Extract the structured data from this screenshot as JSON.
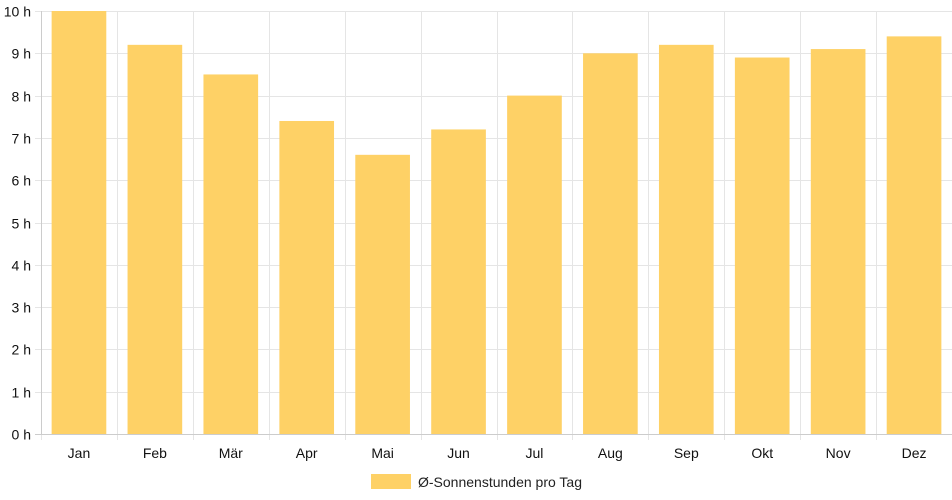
{
  "chart_data": {
    "type": "bar",
    "categories": [
      "Jan",
      "Feb",
      "Mär",
      "Apr",
      "Mai",
      "Jun",
      "Jul",
      "Aug",
      "Sep",
      "Okt",
      "Nov",
      "Dez"
    ],
    "series": [
      {
        "name": "Ø-Sonnenstunden pro Tag",
        "values": [
          10.0,
          9.2,
          8.5,
          7.4,
          6.6,
          7.2,
          8.0,
          9.0,
          9.2,
          8.9,
          9.1,
          9.4
        ]
      }
    ],
    "y_ticks": [
      "0 h",
      "1 h",
      "2 h",
      "3 h",
      "4 h",
      "5 h",
      "6 h",
      "7 h",
      "8 h",
      "9 h",
      "10 h"
    ],
    "ylim": [
      0,
      10
    ],
    "grid": true,
    "legend": "bottom-center",
    "colors": {
      "bar": "#fed166",
      "grid": "#e5e5e5",
      "axis": "#cccccc",
      "text": "#111111"
    }
  }
}
